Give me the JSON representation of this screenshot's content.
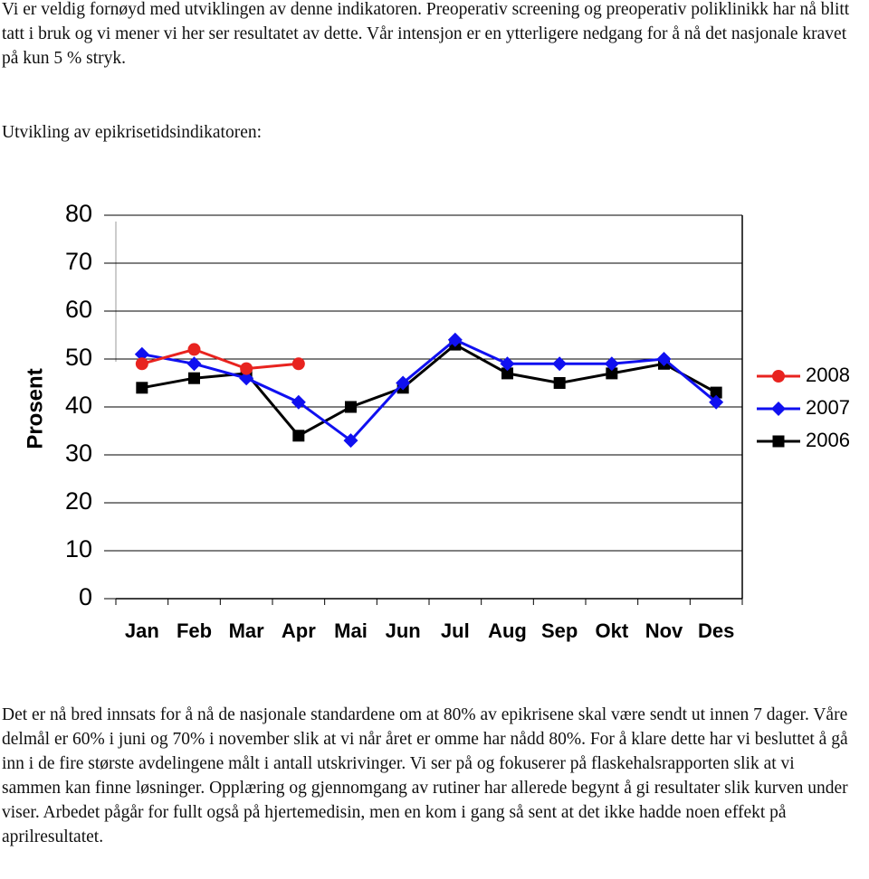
{
  "intro": "Vi er veldig fornøyd med utviklingen av denne indikatoren. Preoperativ screening og preoperativ poliklinikk har nå blitt tatt i bruk og vi mener vi her ser resultatet av dette. Vår intensjon er en ytterligere nedgang for å nå det nasjonale kravet på kun 5 % stryk.",
  "caption": "Utvikling av epikrisetidsindikatoren:",
  "chart_data": {
    "type": "line",
    "y_label": "Prosent",
    "categories": [
      "Jan",
      "Feb",
      "Mar",
      "Apr",
      "Mai",
      "Jun",
      "Jul",
      "Aug",
      "Sep",
      "Okt",
      "Nov",
      "Des"
    ],
    "series": [
      {
        "name": "2008",
        "color": "#e8231f",
        "marker": "circle",
        "values": [
          49,
          52,
          48,
          49,
          null,
          null,
          null,
          null,
          null,
          null,
          null,
          null
        ]
      },
      {
        "name": "2007",
        "color": "#1010f0",
        "marker": "diamond",
        "values": [
          51,
          49,
          46,
          41,
          33,
          45,
          54,
          49,
          49,
          49,
          50,
          41
        ]
      },
      {
        "name": "2006",
        "color": "#000000",
        "marker": "square",
        "values": [
          44,
          46,
          47,
          34,
          40,
          44,
          53,
          47,
          45,
          47,
          49,
          43
        ]
      }
    ],
    "ylim": [
      0,
      80
    ],
    "yticks": [
      0,
      10,
      20,
      30,
      40,
      50,
      60,
      70,
      80
    ],
    "grid": true,
    "legend": "right"
  },
  "body": "Det er nå bred innsats for å nå de nasjonale standardene om at 80% av epikrisene skal være sendt ut innen 7 dager. Våre delmål er 60% i juni og 70% i november slik at vi når året er omme har nådd 80%. For å klare dette har vi besluttet å gå inn i de fire største avdelingene målt i antall utskrivinger. Vi ser på og fokuserer på flaskehalsrapporten slik at vi sammen kan finne løsninger. Opplæring og gjennomgang av rutiner har allerede begynt å gi resultater slik kurven under viser. Arbedet pågår for fullt også på hjertemedisin, men en kom i gang så sent at det ikke hadde noen effekt på aprilresultatet."
}
